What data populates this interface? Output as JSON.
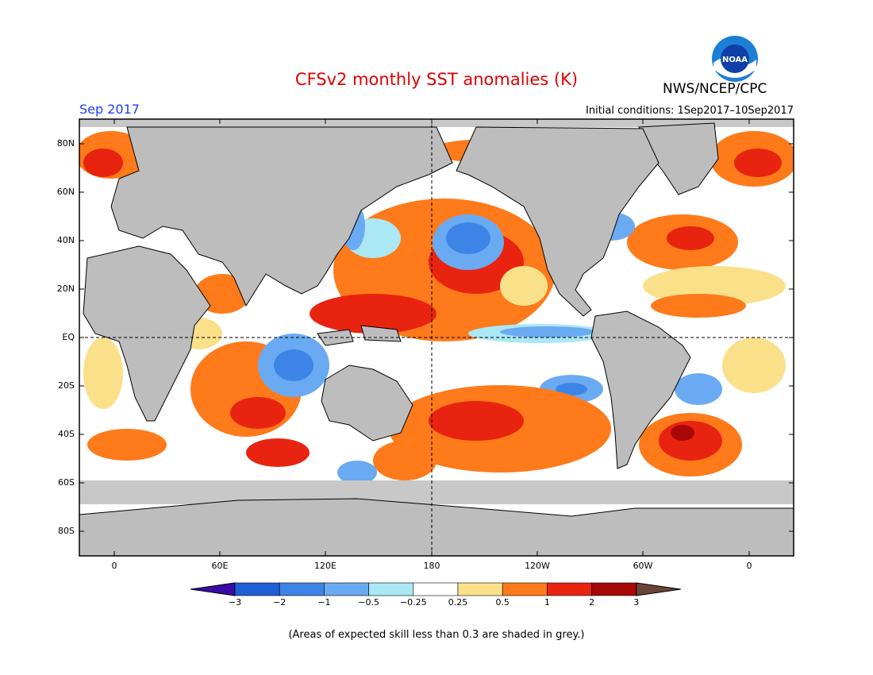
{
  "title": "CFSv2 monthly SST anomalies (K)",
  "month": "Sep 2017",
  "initial_conditions": "Initial conditions: 1Sep2017–10Sep2017",
  "organization": "NWS/NCEP/CPC",
  "logo_text": "NOAA",
  "lat_labels": [
    "80N",
    "60N",
    "40N",
    "20N",
    "EQ",
    "20S",
    "40S",
    "60S",
    "80S"
  ],
  "lon_labels": [
    "0",
    "60E",
    "120E",
    "180",
    "120W",
    "60W",
    "0"
  ],
  "colorbar": {
    "labels": [
      "−3",
      "−2",
      "−1",
      "−0.5",
      "−0.25",
      "0.25",
      "0.5",
      "1",
      "2",
      "3"
    ],
    "colors": [
      "#3a0aa8",
      "#1f5fd6",
      "#3c85e6",
      "#6aaaf2",
      "#a9e8f4",
      "#ffffff",
      "#fbe08a",
      "#ff7a1a",
      "#e82410",
      "#a80808",
      "#6b4636"
    ]
  },
  "colors": {
    "land": "#bdbdbd",
    "low_skill": "#c8c8c8",
    "title": "#e00000",
    "month": "#1e3cff"
  },
  "footnote": "(Areas of expected skill less than 0.3 are shaded in grey.)"
}
